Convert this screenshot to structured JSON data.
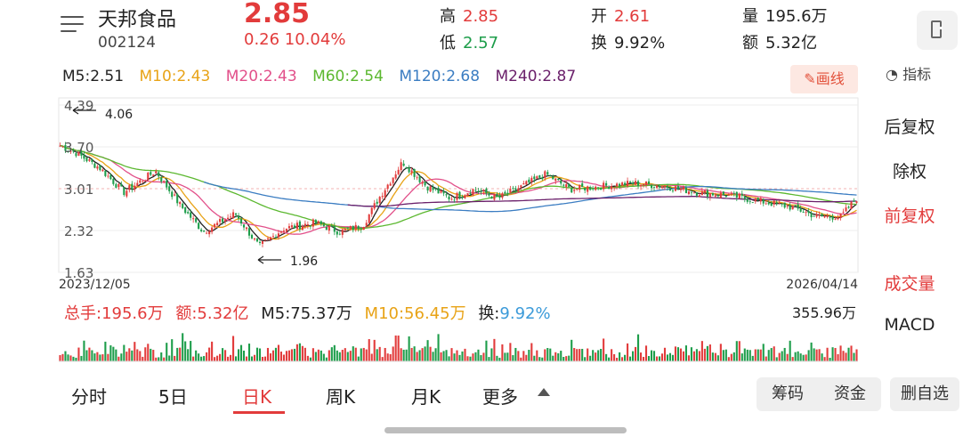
{
  "header": {
    "name": "天邦食品",
    "code": "002124",
    "price": "2.85",
    "change": "0.26  10.04%",
    "high_label": "高",
    "high_value": "2.85",
    "low_label": "低",
    "low_value": "2.57",
    "open_label": "开",
    "open_value": "2.61",
    "turnover_label": "换",
    "turnover_value": "9.92%",
    "volume_label": "量",
    "volume_value": "195.6万",
    "amount_label": "额",
    "amount_value": "5.32亿"
  },
  "ma": {
    "m5": "M5:2.51",
    "m10": "M10:2.43",
    "m20": "M20:2.43",
    "m60": "M60:2.54",
    "m120": "M120:2.68",
    "m240": "M240:2.87",
    "colors": {
      "m5": "#222222",
      "m10": "#e8a317",
      "m20": "#e2508a",
      "m60": "#5cb830",
      "m120": "#3b7dc2",
      "m240": "#6a1f6a"
    }
  },
  "draw_button": "✎画线",
  "indicator_button": "指标",
  "chart_data": {
    "type": "candlestick",
    "y_ticks": [
      "4.39",
      "3.70",
      "3.01",
      "2.32",
      "1.63"
    ],
    "ylim": [
      1.63,
      4.39
    ],
    "dates": [
      "2023/12/05",
      "2026/04/14"
    ],
    "annotations": {
      "high": "4.06",
      "low": "1.96"
    },
    "grid": true,
    "series_anchor": [
      [
        0,
        3.72
      ],
      [
        0.02,
        3.6
      ],
      [
        0.05,
        3.35
      ],
      [
        0.08,
        2.95
      ],
      [
        0.12,
        3.3
      ],
      [
        0.15,
        2.75
      ],
      [
        0.18,
        2.3
      ],
      [
        0.22,
        2.6
      ],
      [
        0.25,
        2.05
      ],
      [
        0.28,
        2.35
      ],
      [
        0.32,
        2.45
      ],
      [
        0.35,
        2.3
      ],
      [
        0.38,
        2.4
      ],
      [
        0.4,
        2.85
      ],
      [
        0.43,
        3.45
      ],
      [
        0.46,
        3.05
      ],
      [
        0.49,
        2.85
      ],
      [
        0.52,
        3.0
      ],
      [
        0.55,
        2.85
      ],
      [
        0.58,
        3.05
      ],
      [
        0.61,
        3.25
      ],
      [
        0.64,
        3.0
      ],
      [
        0.68,
        3.05
      ],
      [
        0.72,
        3.1
      ],
      [
        0.76,
        3.05
      ],
      [
        0.8,
        2.95
      ],
      [
        0.84,
        2.9
      ],
      [
        0.88,
        2.8
      ],
      [
        0.92,
        2.7
      ],
      [
        0.95,
        2.55
      ],
      [
        0.98,
        2.55
      ],
      [
        1.0,
        2.85
      ]
    ]
  },
  "right_menu": [
    "后复权",
    "除权",
    "前复权",
    "成交量",
    "MACD"
  ],
  "volume": {
    "total": "总手:195.6万",
    "amount": "额:5.32亿",
    "m5": "M5:75.37万",
    "m10": "M10:56.45万",
    "turnover_label": "换:",
    "turnover_value": "9.92%",
    "max": "355.96万"
  },
  "tabs": [
    "分时",
    "5日",
    "日K",
    "周K",
    "月K",
    "更多"
  ],
  "bottom_buttons": [
    "筹码",
    "资金",
    "删自选"
  ]
}
